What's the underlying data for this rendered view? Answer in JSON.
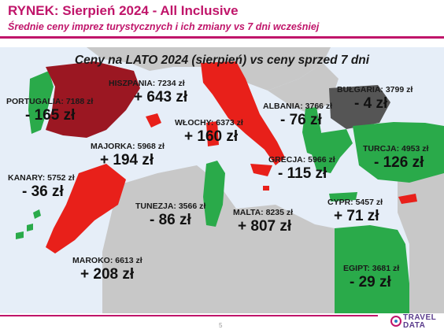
{
  "title": "RYNEK: Sierpień 2024 - All Inclusive",
  "subtitle": "Średnie ceny imprez turystycznych i ich zmiany vs 7 dni wcześniej",
  "map_heading": "Ceny na LATO 2024 (sierpień) vs ceny sprzed 7 dni",
  "colors": {
    "brand": "#c0156a",
    "increase": "#e8201a",
    "decrease": "#2aaa4a",
    "spain": "#9b1722",
    "bulgaria": "#555555",
    "sea": "#e6eef8",
    "land": "#c8c8c8"
  },
  "countries": [
    {
      "id": "portugalia",
      "label": "PORTUGALIA: 7188 zł",
      "change": "- 165 zł",
      "trend": "down"
    },
    {
      "id": "hiszpania",
      "label": "HISZPANIA: 7234 zł",
      "change": "+ 643 zł",
      "trend": "up"
    },
    {
      "id": "majorka",
      "label": "MAJORKA: 5968 zł",
      "change": "+ 194 zł",
      "trend": "up"
    },
    {
      "id": "wlochy",
      "label": "WŁOCHY: 6373 zł",
      "change": "+ 160 zł",
      "trend": "up"
    },
    {
      "id": "albania",
      "label": "ALBANIA: 3766 zł",
      "change": "- 76 zł",
      "trend": "down"
    },
    {
      "id": "bulgaria",
      "label": "BUŁGARIA: 3799 zł",
      "change": "- 4 zł",
      "trend": "down"
    },
    {
      "id": "turcja",
      "label": "TURCJA: 4953 zł",
      "change": "- 126 zł",
      "trend": "down"
    },
    {
      "id": "grecja",
      "label": "GRECJA: 5966 zł",
      "change": "- 115 zł",
      "trend": "down"
    },
    {
      "id": "kanary",
      "label": "KANARY: 5752 zł",
      "change": "- 36 zł",
      "trend": "down"
    },
    {
      "id": "tunezja",
      "label": "TUNEZJA: 3566 zł",
      "change": "- 86 zł",
      "trend": "down"
    },
    {
      "id": "malta",
      "label": "MALTA: 8235 zł",
      "change": "+ 807 zł",
      "trend": "up"
    },
    {
      "id": "cypr",
      "label": "CYPR: 5457 zł",
      "change": "+ 71 zł",
      "trend": "up"
    },
    {
      "id": "maroko",
      "label": "MAROKO: 6613 zł",
      "change": "+ 208 zł",
      "trend": "up"
    },
    {
      "id": "egipt",
      "label": "EGIPT: 3681 zł",
      "change": "- 29 zł",
      "trend": "down"
    }
  ],
  "page_number": "5",
  "logo": {
    "line1": "TRAVEL",
    "line2": "DATA"
  }
}
